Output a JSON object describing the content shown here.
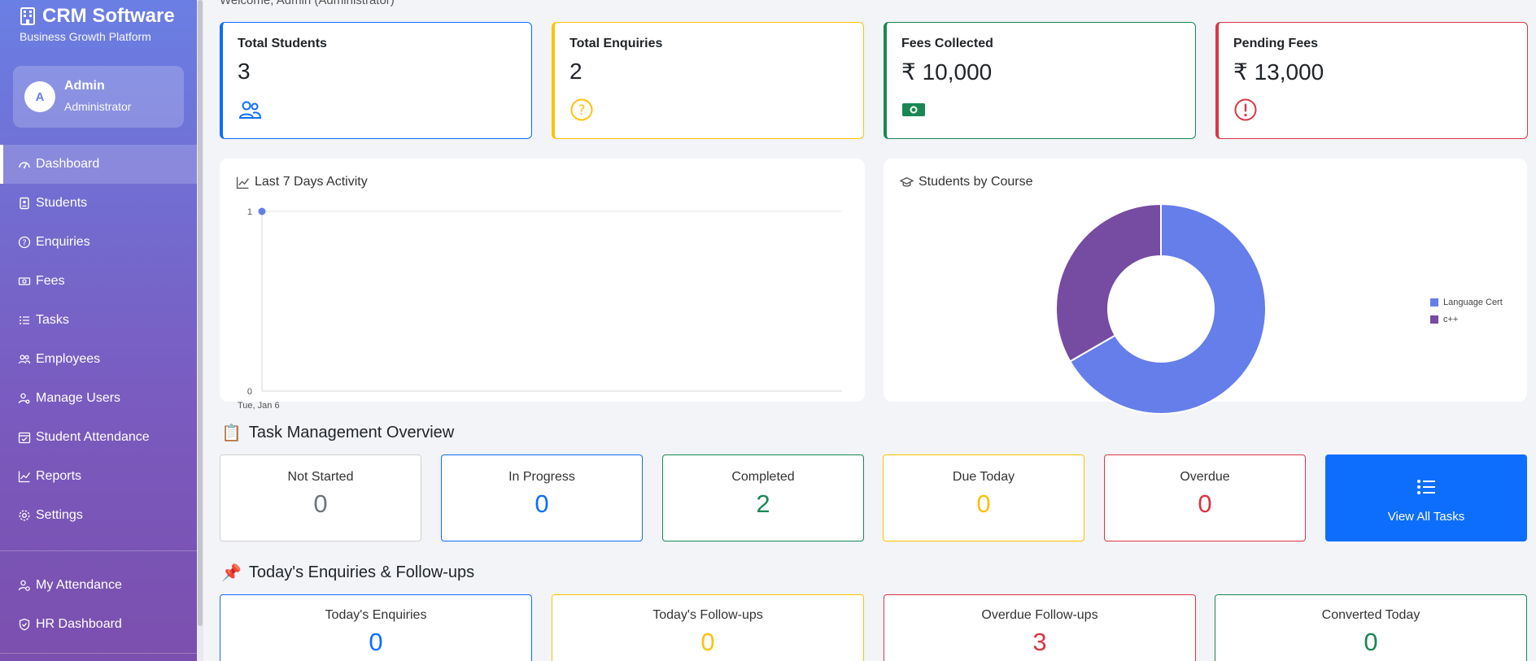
{
  "brand": {
    "title": "CRM Software",
    "subtitle": "Business Growth Platform"
  },
  "user": {
    "initial": "A",
    "name": "Admin",
    "role": "Administrator"
  },
  "nav": {
    "items": [
      {
        "label": "Dashboard",
        "icon": "speedometer-icon",
        "active": true
      },
      {
        "label": "Students",
        "icon": "id-card-icon"
      },
      {
        "label": "Enquiries",
        "icon": "question-circle-icon"
      },
      {
        "label": "Fees",
        "icon": "cash-icon"
      },
      {
        "label": "Tasks",
        "icon": "list-icon"
      },
      {
        "label": "Employees",
        "icon": "people-icon"
      },
      {
        "label": "Manage Users",
        "icon": "person-gear-icon"
      },
      {
        "label": "Student Attendance",
        "icon": "calendar-check-icon"
      },
      {
        "label": "Reports",
        "icon": "graph-up-icon"
      },
      {
        "label": "Settings",
        "icon": "gear-icon"
      }
    ],
    "bottom_items": [
      {
        "label": "My Attendance",
        "icon": "person-clock-icon"
      },
      {
        "label": "HR Dashboard",
        "icon": "shield-check-icon"
      }
    ]
  },
  "welcome": "Welcome, Admin (Administrator)",
  "stats": [
    {
      "label": "Total Students",
      "value": "3",
      "color": "#0d6efd",
      "icon": "people-icon"
    },
    {
      "label": "Total Enquiries",
      "value": "2",
      "color": "#ffc107",
      "icon": "question-circle-icon"
    },
    {
      "label": "Fees Collected",
      "value": "₹ 10,000",
      "color": "#198754",
      "icon": "cash-icon"
    },
    {
      "label": "Pending Fees",
      "value": "₹ 13,000",
      "color": "#dc3545",
      "icon": "exclamation-circle-icon"
    }
  ],
  "activity_panel": {
    "title": "Last 7 Days Activity"
  },
  "course_panel": {
    "title": "Students by Course"
  },
  "chart_data": [
    {
      "type": "line",
      "x": [
        "Tue, Jan 6"
      ],
      "series": [
        {
          "values": [
            1
          ]
        }
      ],
      "ylim": [
        0,
        1
      ],
      "y_ticks": [
        "0",
        "1"
      ],
      "grid": true,
      "color": "#667eea"
    },
    {
      "type": "pie",
      "donut": true,
      "categories": [
        "Language Cert",
        "c++"
      ],
      "values": [
        2,
        1
      ],
      "colors": [
        "#667eea",
        "#764ba2"
      ],
      "legend": "right"
    }
  ],
  "task_section": {
    "emoji": "📋",
    "title": "Task Management Overview"
  },
  "tasks": [
    {
      "label": "Not Started",
      "value": "0",
      "color": "#6c757d",
      "border": "#d0d0d0"
    },
    {
      "label": "In Progress",
      "value": "0",
      "color": "#0d6efd",
      "border": "#0d6efd"
    },
    {
      "label": "Completed",
      "value": "2",
      "color": "#198754",
      "border": "#198754"
    },
    {
      "label": "Due Today",
      "value": "0",
      "color": "#ffc107",
      "border": "#ffc107"
    },
    {
      "label": "Overdue",
      "value": "0",
      "color": "#dc3545",
      "border": "#dc3545"
    }
  ],
  "view_all_tasks": "View All Tasks",
  "enq_section": {
    "emoji": "📌",
    "title": "Today's Enquiries & Follow-ups"
  },
  "enquiries": [
    {
      "label": "Today's Enquiries",
      "value": "0",
      "color": "#0d6efd"
    },
    {
      "label": "Today's Follow-ups",
      "value": "0",
      "color": "#ffc107"
    },
    {
      "label": "Overdue Follow-ups",
      "value": "3",
      "color": "#dc3545"
    },
    {
      "label": "Converted Today",
      "value": "0",
      "color": "#198754"
    }
  ]
}
